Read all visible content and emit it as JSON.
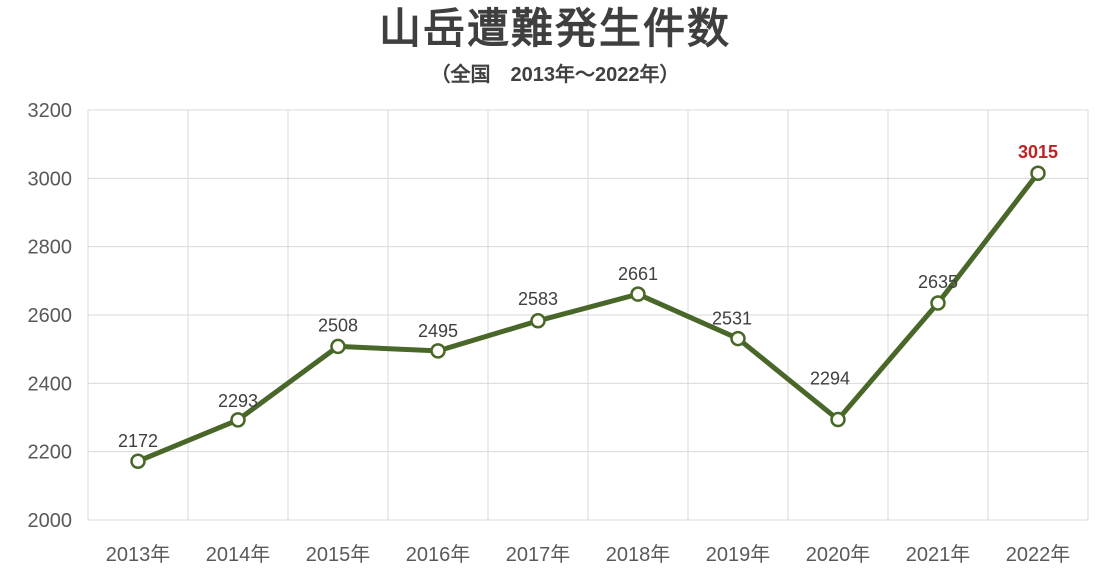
{
  "chart_data": {
    "type": "line",
    "title": "山岳遭難発生件数",
    "subtitle": "（全国　2013年～2022年）",
    "categories": [
      "2013年",
      "2014年",
      "2015年",
      "2016年",
      "2017年",
      "2018年",
      "2019年",
      "2020年",
      "2021年",
      "2022年"
    ],
    "series": [
      {
        "name": "山岳遭難発生件数",
        "values": [
          2172,
          2293,
          2508,
          2495,
          2583,
          2661,
          2531,
          2294,
          2635,
          3015
        ]
      }
    ],
    "ylim": [
      2000,
      3200
    ],
    "ytick_step": 200,
    "ytick_labels": [
      "2000",
      "2200",
      "2400",
      "2600",
      "2800",
      "3000",
      "3200"
    ],
    "grid": "both",
    "legend": "none",
    "data_labels": "above",
    "colors": {
      "line": "#4a672a",
      "marker_fill": "#fcfdf8",
      "marker_stroke": "#4a672a",
      "data_label": "#404040",
      "axis_text": "#595959",
      "gridline": "#d9d9d9",
      "highlight": "#be2323",
      "title": "#3f3f3f"
    },
    "highlight_index": 9,
    "label_dx": [
      0,
      0,
      0,
      0,
      0,
      0,
      -6,
      -8,
      0,
      0
    ],
    "label_dy": [
      -14,
      -13,
      -15,
      -14,
      -16,
      -14,
      -14,
      -35,
      -15,
      -15
    ]
  }
}
